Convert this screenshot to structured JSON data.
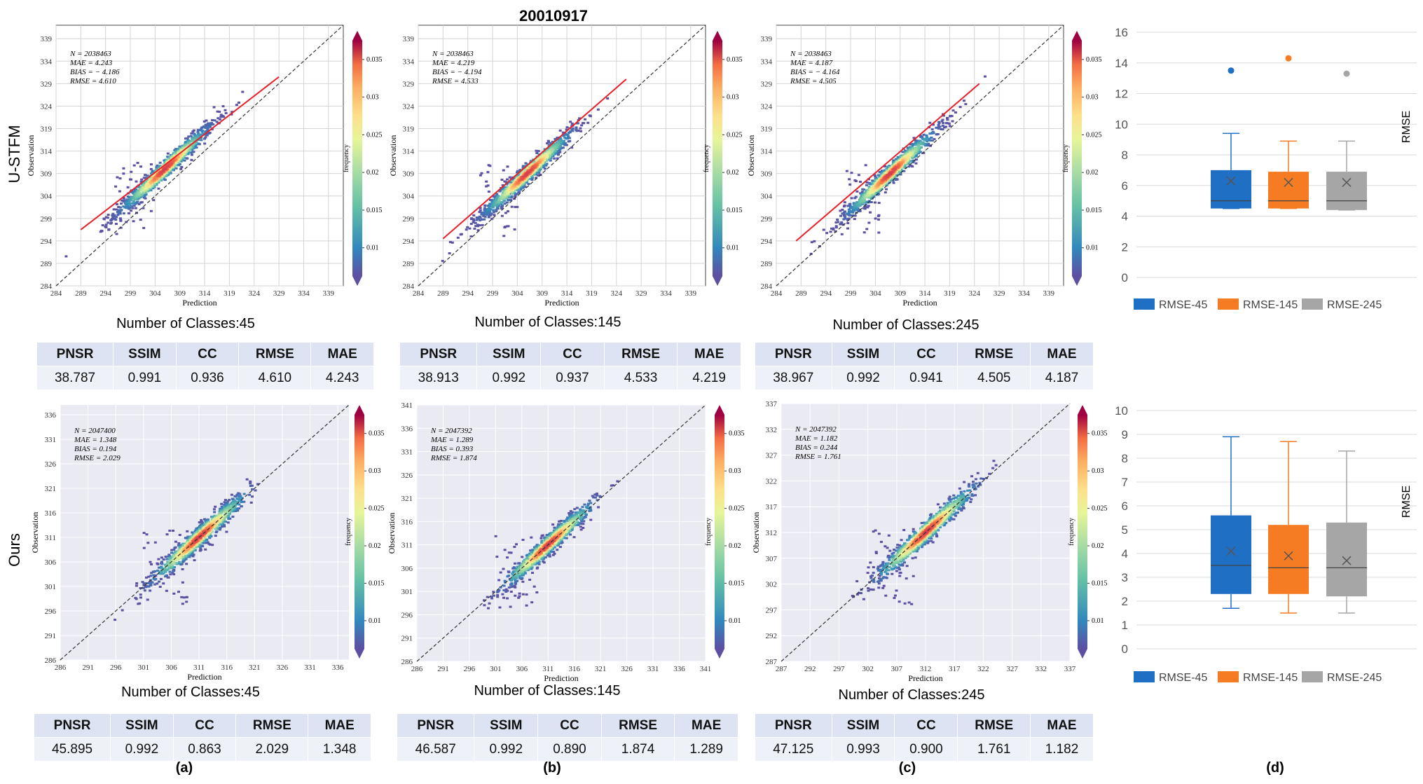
{
  "figure": {
    "date_title": "20010917",
    "row_labels": [
      "U-STFM",
      "Ours"
    ],
    "panel_labels": [
      "(a)",
      "(b)",
      "(c)",
      "(d)"
    ],
    "table_headers": [
      "PNSR",
      "SSIM",
      "CC",
      "RMSE",
      "MAE"
    ],
    "colors": {
      "regression_line": "#e8202a",
      "diagonal": "#333333",
      "panel_bg_ours": "#eaeaf2",
      "box_45": "#1f6fc4",
      "box_145": "#f57c22",
      "box_245": "#a6a6a6",
      "table_header_bg": "#dde3f2",
      "table_value_bg": "#eef1f8"
    }
  },
  "chart_data": [
    {
      "type": "scatter",
      "panel": "U-STFM / 45",
      "xlabel": "Prediction",
      "ylabel": "Observation",
      "colorbar_label": "frequency",
      "xlim": [
        284,
        342
      ],
      "ylim": [
        284,
        342
      ],
      "xticks": [
        284,
        289,
        294,
        299,
        304,
        309,
        314,
        319,
        324,
        329,
        334,
        339
      ],
      "yticks": [
        284,
        289,
        294,
        299,
        304,
        309,
        314,
        319,
        324,
        329,
        334,
        339
      ],
      "colorbar_ticks": [
        "0.01",
        "0.015",
        "0.02",
        "0.025",
        "0.03",
        "0.035"
      ],
      "stats": [
        "N = 2038463",
        "MAE = 4.243",
        "BIAS = − 4.186",
        "RMSE = 4.610"
      ],
      "regression": [
        [
          289,
          296.5
        ],
        [
          329,
          330.5
        ]
      ],
      "caption": "Number of Classes:45",
      "metrics": [
        "38.787",
        "0.991",
        "0.936",
        "4.610",
        "4.243"
      ]
    },
    {
      "type": "scatter",
      "panel": "U-STFM / 145",
      "xlabel": "Prediction",
      "ylabel": "Observation",
      "colorbar_label": "frequency",
      "xlim": [
        284,
        342
      ],
      "ylim": [
        284,
        342
      ],
      "xticks": [
        284,
        289,
        294,
        299,
        304,
        309,
        314,
        319,
        324,
        329,
        334,
        339
      ],
      "yticks": [
        284,
        289,
        294,
        299,
        304,
        309,
        314,
        319,
        324,
        329,
        334,
        339
      ],
      "colorbar_ticks": [
        "0.01",
        "0.015",
        "0.02",
        "0.025",
        "0.03",
        "0.035"
      ],
      "stats": [
        "N = 2038463",
        "MAE = 4.219",
        "BIAS = − 4.194",
        "RMSE = 4.533"
      ],
      "regression": [
        [
          289,
          294.5
        ],
        [
          326,
          330
        ]
      ],
      "caption": "Number of Classes:145",
      "metrics": [
        "38.913",
        "0.992",
        "0.937",
        "4.533",
        "4.219"
      ]
    },
    {
      "type": "scatter",
      "panel": "U-STFM / 245",
      "xlabel": "Prediction",
      "ylabel": "Observation",
      "colorbar_label": "frequency",
      "xlim": [
        284,
        342
      ],
      "ylim": [
        284,
        342
      ],
      "xticks": [
        284,
        289,
        294,
        299,
        304,
        309,
        314,
        319,
        324,
        329,
        334,
        339
      ],
      "yticks": [
        284,
        289,
        294,
        299,
        304,
        309,
        314,
        319,
        324,
        329,
        334,
        339
      ],
      "colorbar_ticks": [
        "0.01",
        "0.015",
        "0.02",
        "0.025",
        "0.03",
        "0.035"
      ],
      "stats": [
        "N = 2038463",
        "MAE = 4.187",
        "BIAS = − 4.164",
        "RMSE = 4.505"
      ],
      "regression": [
        [
          288,
          294
        ],
        [
          325,
          329
        ]
      ],
      "caption": "Number of Classes:245",
      "metrics": [
        "38.967",
        "0.992",
        "0.941",
        "4.505",
        "4.187"
      ]
    },
    {
      "type": "scatter",
      "panel": "Ours / 45",
      "xlabel": "Prediction",
      "ylabel": "Observation",
      "colorbar_label": "frequency",
      "xlim": [
        286,
        338
      ],
      "ylim": [
        286,
        338
      ],
      "xticks": [
        286,
        291,
        296,
        301,
        306,
        311,
        316,
        321,
        326,
        331,
        336
      ],
      "yticks": [
        286,
        291,
        296,
        301,
        306,
        311,
        316,
        321,
        326,
        331,
        336
      ],
      "colorbar_ticks": [
        "0.01",
        "0.015",
        "0.02",
        "0.025",
        "0.03",
        "0.035"
      ],
      "stats": [
        "N = 2047400",
        "MAE = 1.348",
        "BIAS = 0.194",
        "RMSE = 2.029"
      ],
      "caption": "Number of Classes:45",
      "metrics": [
        "45.895",
        "0.992",
        "0.863",
        "2.029",
        "1.348"
      ]
    },
    {
      "type": "scatter",
      "panel": "Ours / 145",
      "xlabel": "Prediction",
      "ylabel": "Observation",
      "colorbar_label": "frequency",
      "xlim": [
        286,
        341
      ],
      "ylim": [
        286,
        341
      ],
      "xticks": [
        286,
        291,
        296,
        301,
        306,
        311,
        316,
        321,
        326,
        331,
        336,
        341
      ],
      "yticks": [
        286,
        291,
        296,
        301,
        306,
        311,
        316,
        321,
        326,
        331,
        336,
        341
      ],
      "colorbar_ticks": [
        "0.01",
        "0.015",
        "0.02",
        "0.025",
        "0.03",
        "0.035"
      ],
      "stats": [
        "N = 2047392",
        "MAE = 1.289",
        "BIAS = 0.393",
        "RMSE = 1.874"
      ],
      "caption": "Number of Classes:145",
      "metrics": [
        "46.587",
        "0.992",
        "0.890",
        "1.874",
        "1.289"
      ]
    },
    {
      "type": "scatter",
      "panel": "Ours / 245",
      "xlabel": "Prediction",
      "ylabel": "Observation",
      "colorbar_label": "frequency",
      "xlim": [
        287,
        337
      ],
      "ylim": [
        287,
        337
      ],
      "xticks": [
        287,
        292,
        297,
        302,
        307,
        312,
        317,
        322,
        327,
        332,
        337
      ],
      "yticks": [
        287,
        292,
        297,
        302,
        307,
        312,
        317,
        322,
        327,
        332,
        337
      ],
      "colorbar_ticks": [
        "0.01",
        "0.015",
        "0.02",
        "0.025",
        "0.03",
        "0.035"
      ],
      "stats": [
        "N = 2047392",
        "MAE = 1.182",
        "BIAS = 0.244",
        "RMSE = 1.761"
      ],
      "caption": "Number of Classes:245",
      "metrics": [
        "47.125",
        "0.993",
        "0.900",
        "1.761",
        "1.182"
      ]
    },
    {
      "type": "box",
      "panel": "U-STFM",
      "ylabel": "RMSE",
      "ylim": [
        0,
        16
      ],
      "yticks": [
        0,
        2,
        4,
        6,
        8,
        10,
        12,
        14,
        16
      ],
      "series": [
        {
          "name": "RMSE-45",
          "min": 4.5,
          "q1": 4.5,
          "median": 5.0,
          "q3": 7.0,
          "max": 9.4,
          "mean": 6.3,
          "outliers": [
            13.5
          ]
        },
        {
          "name": "RMSE-145",
          "min": 4.5,
          "q1": 4.5,
          "median": 5.0,
          "q3": 6.9,
          "max": 8.9,
          "mean": 6.2,
          "outliers": [
            14.3
          ]
        },
        {
          "name": "RMSE-245",
          "min": 4.4,
          "q1": 4.4,
          "median": 5.0,
          "q3": 6.9,
          "max": 8.9,
          "mean": 6.2,
          "outliers": [
            13.3
          ]
        }
      ]
    },
    {
      "type": "box",
      "panel": "Ours",
      "ylabel": "RMSE",
      "ylim": [
        0,
        10
      ],
      "yticks": [
        0,
        1,
        2,
        3,
        4,
        5,
        6,
        7,
        8,
        9,
        10
      ],
      "series": [
        {
          "name": "RMSE-45",
          "min": 1.7,
          "q1": 2.3,
          "median": 3.5,
          "q3": 5.6,
          "max": 8.9,
          "mean": 4.1,
          "outliers": []
        },
        {
          "name": "RMSE-145",
          "min": 1.5,
          "q1": 2.3,
          "median": 3.4,
          "q3": 5.2,
          "max": 8.7,
          "mean": 3.9,
          "outliers": []
        },
        {
          "name": "RMSE-245",
          "min": 1.5,
          "q1": 2.2,
          "median": 3.4,
          "q3": 5.3,
          "max": 8.3,
          "mean": 3.7,
          "outliers": []
        }
      ]
    }
  ]
}
